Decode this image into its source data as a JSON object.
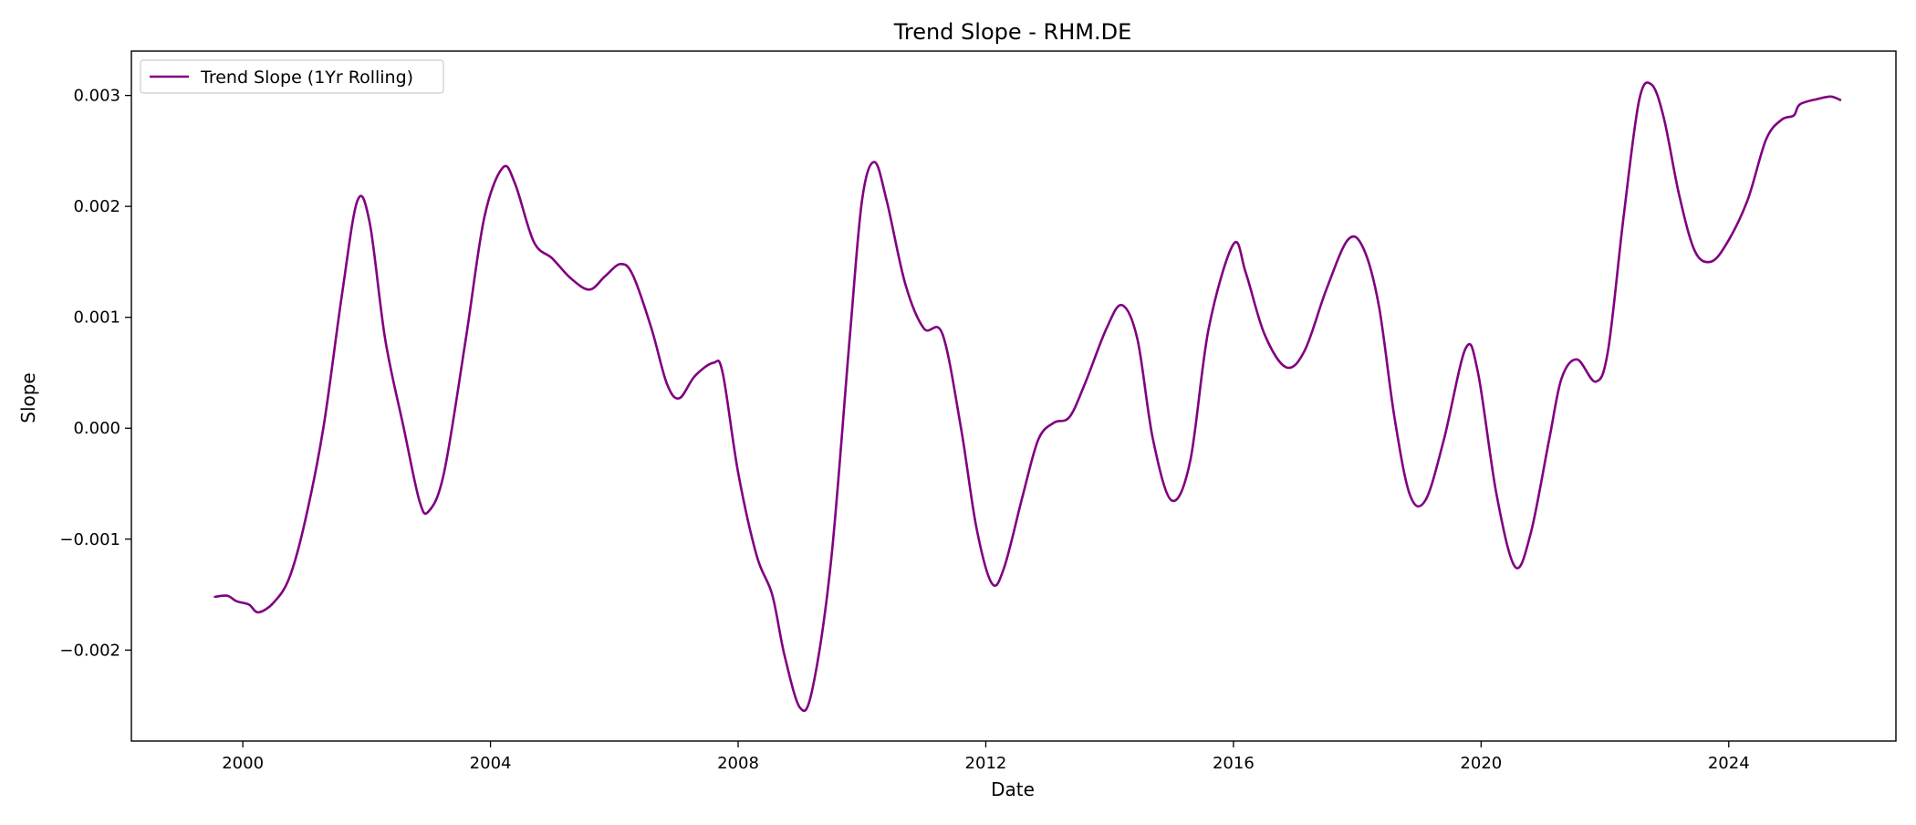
{
  "chart_data": {
    "type": "line",
    "title": "Trend Slope - RHM.DE",
    "xlabel": "Date",
    "ylabel": "Slope",
    "xlim": [
      1998.2,
      2026.7
    ],
    "ylim": [
      -0.00282,
      0.0034
    ],
    "x_ticks": [
      2000,
      2004,
      2008,
      2012,
      2016,
      2020,
      2024
    ],
    "x_tick_labels": [
      "2000",
      "2004",
      "2008",
      "2012",
      "2016",
      "2020",
      "2024"
    ],
    "y_ticks": [
      -0.002,
      -0.001,
      0.0,
      0.001,
      0.002,
      0.003
    ],
    "y_tick_labels": [
      "−0.002",
      "−0.001",
      "0.000",
      "0.001",
      "0.002",
      "0.003"
    ],
    "grid": false,
    "legend_position": "top-left",
    "series": [
      {
        "name": "Trend Slope (1Yr Rolling)",
        "color": "#800080",
        "points": [
          [
            1999.55,
            -0.00152
          ],
          [
            1999.75,
            -0.00151
          ],
          [
            1999.9,
            -0.00156
          ],
          [
            2000.1,
            -0.00159
          ],
          [
            2000.25,
            -0.00166
          ],
          [
            2000.5,
            -0.00157
          ],
          [
            2000.75,
            -0.00135
          ],
          [
            2001.0,
            -0.00085
          ],
          [
            2001.3,
            0.0
          ],
          [
            2001.6,
            0.0012
          ],
          [
            2001.85,
            0.00205
          ],
          [
            2002.05,
            0.00185
          ],
          [
            2002.3,
            0.0008
          ],
          [
            2002.6,
            0.0
          ],
          [
            2002.85,
            -0.00065
          ],
          [
            2003.0,
            -0.00075
          ],
          [
            2003.25,
            -0.0004
          ],
          [
            2003.6,
            0.0008
          ],
          [
            2003.9,
            0.0019
          ],
          [
            2004.2,
            0.00235
          ],
          [
            2004.4,
            0.0022
          ],
          [
            2004.7,
            0.00168
          ],
          [
            2005.0,
            0.00153
          ],
          [
            2005.3,
            0.00135
          ],
          [
            2005.6,
            0.00125
          ],
          [
            2005.85,
            0.00137
          ],
          [
            2006.1,
            0.00148
          ],
          [
            2006.3,
            0.00138
          ],
          [
            2006.6,
            0.0009
          ],
          [
            2006.85,
            0.0004
          ],
          [
            2007.05,
            0.00027
          ],
          [
            2007.3,
            0.00047
          ],
          [
            2007.6,
            0.00059
          ],
          [
            2007.75,
            0.0005
          ],
          [
            2008.0,
            -0.0004
          ],
          [
            2008.3,
            -0.00115
          ],
          [
            2008.55,
            -0.0015
          ],
          [
            2008.75,
            -0.00205
          ],
          [
            2009.0,
            -0.00252
          ],
          [
            2009.2,
            -0.00235
          ],
          [
            2009.5,
            -0.0012
          ],
          [
            2009.8,
            0.0008
          ],
          [
            2010.0,
            0.00205
          ],
          [
            2010.2,
            0.0024
          ],
          [
            2010.4,
            0.00205
          ],
          [
            2010.7,
            0.0013
          ],
          [
            2011.0,
            0.0009
          ],
          [
            2011.3,
            0.00085
          ],
          [
            2011.6,
            0.0
          ],
          [
            2011.85,
            -0.0009
          ],
          [
            2012.1,
            -0.0014
          ],
          [
            2012.3,
            -0.00125
          ],
          [
            2012.6,
            -0.0006
          ],
          [
            2012.85,
            -0.0001
          ],
          [
            2013.1,
            5e-05
          ],
          [
            2013.35,
            0.0001
          ],
          [
            2013.6,
            0.0004
          ],
          [
            2013.95,
            0.0009
          ],
          [
            2014.2,
            0.00111
          ],
          [
            2014.45,
            0.0008
          ],
          [
            2014.7,
            -0.0001
          ],
          [
            2015.0,
            -0.00065
          ],
          [
            2015.3,
            -0.0003
          ],
          [
            2015.6,
            0.0009
          ],
          [
            2016.0,
            0.00166
          ],
          [
            2016.2,
            0.0014
          ],
          [
            2016.5,
            0.00085
          ],
          [
            2016.85,
            0.00055
          ],
          [
            2017.15,
            0.0007
          ],
          [
            2017.5,
            0.00125
          ],
          [
            2017.85,
            0.0017
          ],
          [
            2018.1,
            0.00162
          ],
          [
            2018.35,
            0.0011
          ],
          [
            2018.6,
            0.0001
          ],
          [
            2018.85,
            -0.0006
          ],
          [
            2019.1,
            -0.00065
          ],
          [
            2019.4,
            -0.0001
          ],
          [
            2019.75,
            0.00072
          ],
          [
            2019.95,
            0.0005
          ],
          [
            2020.25,
            -0.0006
          ],
          [
            2020.55,
            -0.00125
          ],
          [
            2020.8,
            -0.00095
          ],
          [
            2021.1,
            -0.0001
          ],
          [
            2021.3,
            0.00045
          ],
          [
            2021.55,
            0.00062
          ],
          [
            2021.85,
            0.00042
          ],
          [
            2022.05,
            0.0007
          ],
          [
            2022.3,
            0.0019
          ],
          [
            2022.55,
            0.00295
          ],
          [
            2022.75,
            0.0031
          ],
          [
            2022.95,
            0.0028
          ],
          [
            2023.2,
            0.0021
          ],
          [
            2023.45,
            0.0016
          ],
          [
            2023.7,
            0.0015
          ],
          [
            2023.95,
            0.00165
          ],
          [
            2024.3,
            0.00205
          ],
          [
            2024.6,
            0.0026
          ],
          [
            2024.85,
            0.00278
          ],
          [
            2025.05,
            0.00282
          ],
          [
            2025.15,
            0.00292
          ],
          [
            2025.45,
            0.00297
          ],
          [
            2025.65,
            0.00299
          ],
          [
            2025.8,
            0.00296
          ]
        ]
      }
    ]
  }
}
